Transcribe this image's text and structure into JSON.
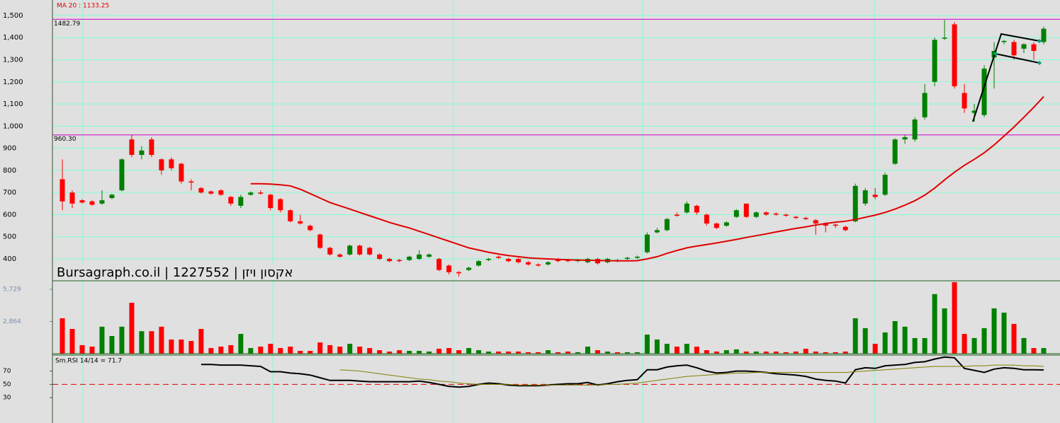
{
  "chart_data": [
    {
      "type": "candlestick",
      "title": "Bursagraph.co.il | 1227552 | אקסון ויזן",
      "annotation": "MA 20 : 1133.25",
      "open": [
        760,
        700,
        665,
        660,
        650,
        675,
        710,
        940,
        870,
        940,
        850,
        850,
        830,
        750,
        720,
        705,
        710,
        680,
        640,
        690,
        700,
        690,
        670,
        620,
        570,
        550,
        510,
        450,
        420,
        420,
        460,
        450,
        420,
        400,
        395,
        395,
        400,
        410,
        400,
        370,
        340,
        350,
        370,
        395,
        410,
        400,
        400,
        385,
        375,
        375,
        400,
        395,
        390,
        385,
        400,
        385,
        395,
        400,
        405,
        430,
        520,
        530,
        600,
        610,
        640,
        600,
        560,
        550,
        590,
        650,
        590,
        610,
        605,
        600,
        590,
        585,
        575,
        560,
        555,
        545,
        570,
        650,
        690,
        690,
        830,
        940,
        940,
        1040,
        1200,
        1400,
        1460,
        1150,
        1060,
        1050,
        1310,
        1380,
        1380,
        1350,
        1370,
        1380
      ],
      "high": [
        850,
        710,
        670,
        665,
        710,
        695,
        855,
        960,
        910,
        950,
        855,
        860,
        835,
        760,
        725,
        710,
        715,
        685,
        690,
        705,
        710,
        695,
        675,
        625,
        600,
        555,
        515,
        455,
        425,
        465,
        465,
        455,
        425,
        405,
        400,
        415,
        440,
        425,
        405,
        375,
        345,
        365,
        395,
        405,
        415,
        405,
        405,
        390,
        380,
        390,
        405,
        400,
        400,
        405,
        405,
        405,
        400,
        410,
        415,
        520,
        540,
        585,
        610,
        660,
        645,
        605,
        565,
        570,
        625,
        650,
        615,
        615,
        610,
        605,
        595,
        590,
        580,
        565,
        560,
        550,
        740,
        720,
        720,
        790,
        945,
        960,
        1040,
        1190,
        1400,
        1480,
        1470,
        1190,
        1100,
        1275,
        1380,
        1390,
        1390,
        1375,
        1380,
        1450
      ],
      "low": [
        620,
        630,
        650,
        640,
        645,
        670,
        705,
        860,
        850,
        860,
        780,
        800,
        740,
        710,
        695,
        690,
        685,
        640,
        630,
        685,
        690,
        620,
        610,
        565,
        555,
        525,
        445,
        415,
        405,
        415,
        415,
        415,
        395,
        385,
        385,
        390,
        395,
        405,
        345,
        330,
        320,
        345,
        365,
        390,
        400,
        385,
        380,
        370,
        365,
        370,
        385,
        385,
        385,
        380,
        375,
        380,
        385,
        395,
        400,
        425,
        515,
        525,
        590,
        605,
        600,
        550,
        535,
        545,
        585,
        585,
        585,
        595,
        595,
        590,
        580,
        575,
        510,
        520,
        540,
        525,
        565,
        640,
        670,
        685,
        825,
        920,
        930,
        1030,
        1180,
        1390,
        1170,
        1060,
        1020,
        1040,
        1170,
        1370,
        1300,
        1330,
        1300,
        1370
      ],
      "close": [
        660,
        650,
        655,
        645,
        665,
        690,
        850,
        870,
        890,
        870,
        800,
        810,
        750,
        745,
        700,
        695,
        690,
        650,
        680,
        700,
        695,
        630,
        620,
        570,
        560,
        530,
        450,
        420,
        410,
        460,
        420,
        420,
        400,
        390,
        390,
        410,
        420,
        420,
        350,
        340,
        335,
        360,
        390,
        400,
        405,
        390,
        385,
        375,
        370,
        385,
        390,
        390,
        395,
        400,
        380,
        400,
        390,
        405,
        410,
        510,
        530,
        580,
        595,
        650,
        610,
        560,
        540,
        565,
        620,
        590,
        610,
        600,
        600,
        595,
        585,
        580,
        560,
        550,
        550,
        530,
        730,
        710,
        680,
        780,
        940,
        950,
        1030,
        1150,
        1390,
        1400,
        1180,
        1080,
        1070,
        1260,
        1340,
        1385,
        1320,
        1370,
        1340,
        1440
      ],
      "up_color": "#008000",
      "down_color": "#ff0000",
      "ma": {
        "color": "#e00000",
        "values": [
          null,
          null,
          null,
          null,
          null,
          null,
          null,
          null,
          null,
          null,
          null,
          null,
          null,
          null,
          null,
          null,
          null,
          null,
          null,
          740,
          740,
          738,
          735,
          730,
          715,
          695,
          675,
          655,
          640,
          625,
          610,
          595,
          580,
          565,
          552,
          540,
          525,
          510,
          495,
          480,
          465,
          450,
          440,
          430,
          422,
          415,
          410,
          405,
          402,
          400,
          398,
          396,
          395,
          394,
          393,
          392,
          391,
          391,
          392,
          400,
          410,
          425,
          438,
          450,
          458,
          465,
          472,
          480,
          488,
          497,
          505,
          513,
          522,
          530,
          538,
          545,
          553,
          560,
          566,
          570,
          578,
          588,
          598,
          610,
          625,
          643,
          663,
          688,
          720,
          757,
          792,
          823,
          850,
          880,
          915,
          955,
          996,
          1040,
          1085,
          1133.25
        ]
      },
      "levels": [
        1482.79,
        {
          "value": 960.3,
          "label": "960.30"
        }
      ],
      "level_color": "#cc00cc",
      "ylim": [
        301,
        1570
      ],
      "yticks": [
        {
          "value": 1500,
          "label": "1,500"
        },
        {
          "value": 1400,
          "label": "1,400"
        },
        {
          "value": 1300,
          "label": "1,300"
        },
        {
          "value": 1200,
          "label": "1,200"
        },
        {
          "value": 1100,
          "label": "1,100"
        },
        {
          "value": 1000,
          "label": "1,000"
        },
        900,
        800,
        700,
        600,
        500,
        400
      ],
      "grid": true
    },
    {
      "type": "bar",
      "values": [
        3150,
        2200,
        760,
        630,
        2400,
        1570,
        2400,
        4530,
        2000,
        2000,
        2400,
        1260,
        1260,
        1130,
        2200,
        500,
        630,
        760,
        1760,
        500,
        630,
        880,
        500,
        630,
        250,
        250,
        1000,
        760,
        630,
        880,
        630,
        500,
        310,
        190,
        310,
        250,
        250,
        190,
        440,
        500,
        310,
        500,
        310,
        190,
        190,
        190,
        190,
        130,
        130,
        310,
        130,
        190,
        130,
        630,
        310,
        190,
        130,
        130,
        130,
        1700,
        1260,
        880,
        630,
        880,
        630,
        310,
        190,
        310,
        380,
        190,
        190,
        190,
        190,
        130,
        190,
        440,
        190,
        130,
        130,
        190,
        3150,
        2270,
        880,
        1890,
        2900,
        2400,
        1390,
        1390,
        5300,
        4030,
        6360,
        1760,
        1390,
        2270,
        4030,
        3650,
        2650,
        1390,
        500,
        500
      ],
      "ylim": [
        0,
        6480
      ],
      "yticks": [
        {
          "value": 5729,
          "label": "5,729"
        },
        {
          "value": 2864,
          "label": "2,864"
        }
      ]
    },
    {
      "type": "line",
      "title": "Sm.RSI 14/14 = 71.7",
      "series": [
        {
          "color": "#000000",
          "values": [
            null,
            null,
            null,
            null,
            null,
            null,
            null,
            null,
            null,
            null,
            null,
            null,
            null,
            null,
            80,
            80,
            79,
            79,
            79,
            78,
            77,
            69,
            69,
            67,
            66,
            64,
            60,
            56,
            56,
            56,
            55,
            54,
            54,
            54,
            54,
            54,
            55,
            53,
            50,
            47,
            46,
            47,
            50,
            52,
            51,
            49,
            48,
            48,
            48,
            49,
            50,
            51,
            51,
            53,
            49,
            51,
            54,
            56,
            57,
            72,
            72,
            76,
            78,
            79,
            75,
            70,
            67,
            68,
            70,
            70,
            69,
            68,
            66,
            65,
            64,
            62,
            58,
            56,
            55,
            52,
            72,
            75,
            74,
            78,
            79,
            80,
            83,
            84,
            88,
            91,
            90,
            74,
            71,
            68,
            73,
            75,
            74,
            72,
            72,
            71.7
          ]
        },
        {
          "color": "#808000",
          "values": [
            null,
            null,
            null,
            null,
            null,
            null,
            null,
            null,
            null,
            null,
            null,
            null,
            null,
            null,
            null,
            null,
            null,
            null,
            null,
            null,
            null,
            null,
            null,
            null,
            null,
            null,
            null,
            null,
            72,
            71,
            70,
            68,
            66,
            64,
            62,
            60,
            58,
            57,
            55,
            54,
            52,
            51,
            50,
            50,
            50,
            50,
            49,
            49,
            49,
            49,
            49,
            49,
            49,
            49,
            49,
            50,
            50,
            51,
            52,
            54,
            56,
            58,
            60,
            62,
            63,
            64,
            65,
            66,
            67,
            67,
            68,
            68,
            68,
            68,
            68,
            68,
            68,
            68,
            68,
            68,
            69,
            70,
            71,
            72,
            73,
            74,
            75,
            76,
            77,
            77,
            77,
            77,
            78,
            78,
            79,
            79,
            79,
            78,
            78,
            77
          ]
        }
      ],
      "reference": 50,
      "reference_color": "#e00000",
      "ylim": [
        -8,
        94
      ],
      "yticks": [
        70,
        50,
        30
      ]
    }
  ]
}
